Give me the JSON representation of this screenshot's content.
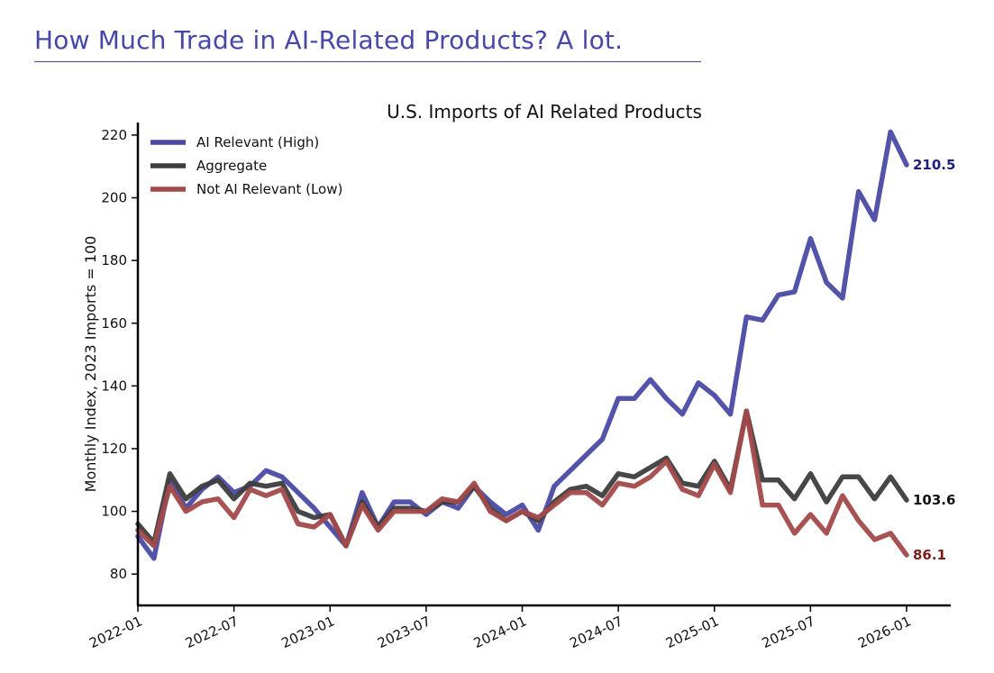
{
  "slide": {
    "title": "How Much Trade in AI-Related Products? A lot."
  },
  "chart_data": {
    "type": "line",
    "title": "U.S. Imports of AI Related Products",
    "ylabel": "Monthly Index, 2023 Imports = 100",
    "xlabel": "",
    "ylim": [
      70,
      224
    ],
    "yticks": [
      80,
      100,
      120,
      140,
      160,
      180,
      200,
      220
    ],
    "xticks": [
      "2022-01",
      "2022-07",
      "2023-01",
      "2023-07",
      "2024-01",
      "2024-07",
      "2025-01",
      "2025-07",
      "2026-01"
    ],
    "grid": false,
    "legend_position": "top-left",
    "x": [
      "2022-01",
      "2022-02",
      "2022-03",
      "2022-04",
      "2022-05",
      "2022-06",
      "2022-07",
      "2022-08",
      "2022-09",
      "2022-10",
      "2022-11",
      "2022-12",
      "2023-01",
      "2023-02",
      "2023-03",
      "2023-04",
      "2023-05",
      "2023-06",
      "2023-07",
      "2023-08",
      "2023-09",
      "2023-10",
      "2023-11",
      "2023-12",
      "2024-01",
      "2024-02",
      "2024-03",
      "2024-04",
      "2024-05",
      "2024-06",
      "2024-07",
      "2024-08",
      "2024-09",
      "2024-10",
      "2024-11",
      "2024-12",
      "2025-01",
      "2025-02",
      "2025-03",
      "2025-04",
      "2025-05",
      "2025-06",
      "2025-07",
      "2025-08",
      "2025-09",
      "2025-10",
      "2025-11",
      "2025-12",
      "2026-01"
    ],
    "series": [
      {
        "name": "AI Relevant (High)",
        "color": "#4a4aa5",
        "end_label": "210.5",
        "end_label_color": "#1f1f80",
        "values": [
          92,
          85,
          110,
          101,
          107,
          111,
          106,
          108,
          113,
          111,
          106,
          101,
          95,
          89,
          106,
          95,
          103,
          103,
          99,
          103,
          101,
          108,
          103,
          99,
          102,
          94,
          108,
          113,
          118,
          123,
          136,
          136,
          142,
          136,
          131,
          141,
          137,
          131,
          162,
          161,
          169,
          170,
          187,
          173,
          168,
          202,
          193,
          221,
          210.5
        ]
      },
      {
        "name": "Aggregate",
        "color": "#3d3d3d",
        "end_label": "103.6",
        "end_label_color": "#111111",
        "values": [
          96,
          90,
          112,
          104,
          108,
          110,
          104,
          109,
          108,
          109,
          100,
          98,
          99,
          89,
          103,
          95,
          101,
          101,
          100,
          103,
          103,
          108,
          101,
          97,
          100,
          97,
          103,
          107,
          108,
          105,
          112,
          111,
          114,
          117,
          109,
          108,
          116,
          107,
          132,
          110,
          110,
          104,
          112,
          103,
          111,
          111,
          104,
          111,
          103.6
        ]
      },
      {
        "name": "Not AI Relevant (Low)",
        "color": "#a24a4a",
        "end_label": "86.1",
        "end_label_color": "#7a1c1c",
        "values": [
          94,
          89,
          108,
          100,
          103,
          104,
          98,
          107,
          105,
          107,
          96,
          95,
          99,
          89,
          102,
          94,
          100,
          100,
          100,
          104,
          103,
          109,
          100,
          97,
          100,
          98,
          102,
          106,
          106,
          102,
          109,
          108,
          111,
          116,
          107,
          105,
          115,
          106,
          132,
          102,
          102,
          93,
          99,
          93,
          105,
          97,
          91,
          93,
          86.1
        ]
      }
    ]
  }
}
